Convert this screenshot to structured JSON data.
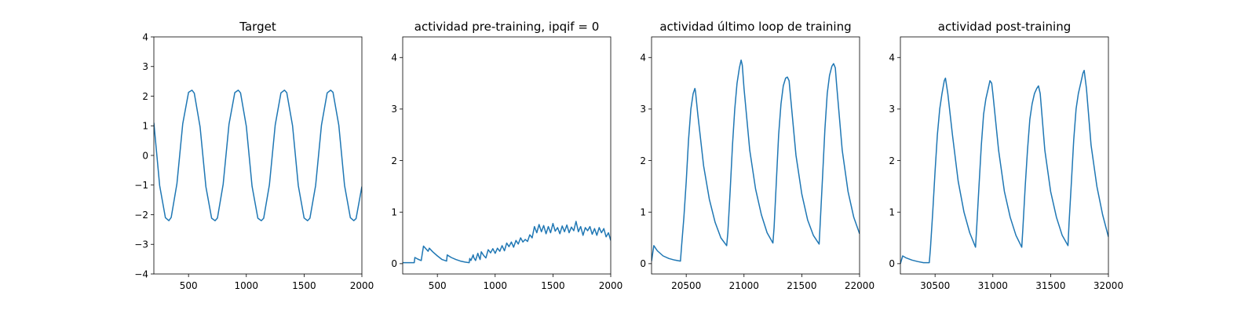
{
  "chart_data": [
    {
      "type": "line",
      "title": "Target",
      "xlabel": "",
      "ylabel": "",
      "xlim": [
        200,
        2000
      ],
      "ylim": [
        -4,
        4
      ],
      "xticks": [
        500,
        1000,
        1500,
        2000
      ],
      "xtick_labels": [
        "500",
        "1000",
        "1500",
        "2000"
      ],
      "yticks": [
        -4,
        -3,
        -2,
        -1,
        0,
        1,
        2,
        3,
        4
      ],
      "ytick_labels": [
        "−4",
        "−3",
        "−2",
        "−1",
        "0",
        "1",
        "2",
        "3",
        "4"
      ],
      "grid": false,
      "color": "#1f77b4",
      "x": [
        200,
        250,
        300,
        330,
        350,
        400,
        450,
        500,
        530,
        550,
        600,
        650,
        700,
        730,
        750,
        800,
        850,
        900,
        930,
        950,
        1000,
        1050,
        1100,
        1130,
        1150,
        1200,
        1250,
        1300,
        1330,
        1350,
        1400,
        1450,
        1500,
        1530,
        1550,
        1600,
        1650,
        1700,
        1730,
        1750,
        1800,
        1850,
        1900,
        1930,
        1950,
        2000
      ],
      "y": [
        1.1,
        -1.02,
        -2.1,
        -2.2,
        -2.09,
        -0.95,
        1.07,
        2.13,
        2.2,
        2.1,
        0.96,
        -1.06,
        -2.12,
        -2.2,
        -2.11,
        -0.97,
        1.05,
        2.12,
        2.2,
        2.11,
        0.98,
        -1.04,
        -2.12,
        -2.2,
        -2.12,
        -0.99,
        1.03,
        2.11,
        2.2,
        2.12,
        1.0,
        -1.02,
        -2.11,
        -2.2,
        -2.12,
        -1.01,
        1.02,
        2.11,
        2.2,
        2.13,
        1.02,
        -1.01,
        -2.1,
        -2.2,
        -2.13,
        -1.05
      ]
    },
    {
      "type": "line",
      "title": "actividad pre-training, ipqif = 0",
      "xlabel": "",
      "ylabel": "",
      "xlim": [
        200,
        2000
      ],
      "ylim": [
        -0.2,
        4.4
      ],
      "xticks": [
        500,
        1000,
        1500,
        2000
      ],
      "xtick_labels": [
        "500",
        "1000",
        "1500",
        "2000"
      ],
      "yticks": [
        0,
        1,
        2,
        3,
        4
      ],
      "ytick_labels": [
        "0",
        "1",
        "2",
        "3",
        "4"
      ],
      "grid": false,
      "color": "#1f77b4",
      "x": [
        200,
        260,
        300,
        305,
        330,
        360,
        370,
        380,
        400,
        420,
        430,
        460,
        500,
        540,
        580,
        585,
        620,
        660,
        700,
        740,
        775,
        780,
        790,
        810,
        815,
        830,
        850,
        860,
        870,
        880,
        900,
        920,
        940,
        960,
        980,
        1000,
        1020,
        1040,
        1060,
        1080,
        1100,
        1120,
        1140,
        1160,
        1180,
        1200,
        1220,
        1240,
        1260,
        1280,
        1300,
        1320,
        1340,
        1360,
        1380,
        1400,
        1420,
        1440,
        1460,
        1480,
        1500,
        1520,
        1540,
        1560,
        1580,
        1600,
        1620,
        1640,
        1660,
        1680,
        1700,
        1720,
        1740,
        1760,
        1780,
        1800,
        1820,
        1840,
        1860,
        1880,
        1900,
        1920,
        1940,
        1960,
        1980,
        2000
      ],
      "y": [
        0.02,
        0.02,
        0.02,
        0.12,
        0.09,
        0.06,
        0.2,
        0.34,
        0.29,
        0.24,
        0.3,
        0.23,
        0.15,
        0.08,
        0.05,
        0.17,
        0.12,
        0.08,
        0.05,
        0.03,
        0.02,
        0.1,
        0.06,
        0.17,
        0.12,
        0.06,
        0.2,
        0.13,
        0.08,
        0.23,
        0.16,
        0.11,
        0.27,
        0.21,
        0.29,
        0.2,
        0.3,
        0.24,
        0.35,
        0.25,
        0.4,
        0.33,
        0.42,
        0.32,
        0.45,
        0.38,
        0.5,
        0.42,
        0.47,
        0.43,
        0.56,
        0.5,
        0.72,
        0.6,
        0.76,
        0.62,
        0.74,
        0.58,
        0.72,
        0.6,
        0.78,
        0.63,
        0.7,
        0.58,
        0.73,
        0.62,
        0.75,
        0.6,
        0.71,
        0.64,
        0.82,
        0.62,
        0.72,
        0.55,
        0.7,
        0.64,
        0.72,
        0.57,
        0.68,
        0.55,
        0.7,
        0.6,
        0.68,
        0.52,
        0.6,
        0.45
      ]
    },
    {
      "type": "line",
      "title": "actividad último loop de training",
      "xlabel": "",
      "ylabel": "",
      "xlim": [
        20200,
        22000
      ],
      "ylim": [
        -0.2,
        4.4
      ],
      "xticks": [
        20500,
        21000,
        21500,
        22000
      ],
      "xtick_labels": [
        "20500",
        "21000",
        "21500",
        "22000"
      ],
      "yticks": [
        0,
        1,
        2,
        3,
        4
      ],
      "ytick_labels": [
        "0",
        "1",
        "2",
        "3",
        "4"
      ],
      "grid": false,
      "color": "#1f77b4",
      "x": [
        20200,
        20220,
        20250,
        20300,
        20350,
        20400,
        20450,
        20460,
        20480,
        20500,
        20520,
        20540,
        20560,
        20575,
        20580,
        20600,
        20650,
        20700,
        20750,
        20800,
        20850,
        20860,
        20880,
        20900,
        20920,
        20940,
        20960,
        20975,
        20985,
        21000,
        21050,
        21100,
        21150,
        21200,
        21250,
        21260,
        21280,
        21300,
        21320,
        21340,
        21360,
        21375,
        21390,
        21400,
        21450,
        21500,
        21550,
        21600,
        21650,
        21660,
        21680,
        21700,
        21720,
        21740,
        21760,
        21775,
        21790,
        21800,
        21850,
        21900,
        21950,
        22000
      ],
      "y": [
        0.05,
        0.35,
        0.25,
        0.15,
        0.1,
        0.07,
        0.05,
        0.35,
        0.9,
        1.6,
        2.4,
        3.0,
        3.3,
        3.4,
        3.35,
        2.9,
        1.9,
        1.25,
        0.8,
        0.5,
        0.35,
        0.6,
        1.4,
        2.3,
        3.0,
        3.5,
        3.8,
        3.95,
        3.85,
        3.4,
        2.2,
        1.45,
        0.95,
        0.6,
        0.4,
        0.7,
        1.6,
        2.5,
        3.1,
        3.45,
        3.6,
        3.62,
        3.55,
        3.3,
        2.1,
        1.35,
        0.85,
        0.55,
        0.38,
        0.8,
        1.7,
        2.6,
        3.3,
        3.65,
        3.83,
        3.88,
        3.8,
        3.5,
        2.2,
        1.4,
        0.9,
        0.58
      ]
    },
    {
      "type": "line",
      "title": "actividad post-training",
      "xlabel": "",
      "ylabel": "",
      "xlim": [
        30200,
        32000
      ],
      "ylim": [
        -0.2,
        4.4
      ],
      "xticks": [
        30500,
        31000,
        31500,
        32000
      ],
      "xtick_labels": [
        "30500",
        "31000",
        "31500",
        "32000"
      ],
      "yticks": [
        0,
        1,
        2,
        3,
        4
      ],
      "ytick_labels": [
        "0",
        "1",
        "2",
        "3",
        "4"
      ],
      "grid": false,
      "color": "#1f77b4",
      "x": [
        30200,
        30220,
        30250,
        30300,
        30350,
        30400,
        30450,
        30460,
        30480,
        30500,
        30520,
        30540,
        30560,
        30580,
        30590,
        30610,
        30650,
        30700,
        30750,
        30800,
        30850,
        30860,
        30880,
        30900,
        30920,
        30940,
        30960,
        30975,
        30990,
        31000,
        31050,
        31100,
        31150,
        31200,
        31250,
        31260,
        31280,
        31300,
        31320,
        31340,
        31360,
        31380,
        31395,
        31410,
        31450,
        31500,
        31550,
        31600,
        31650,
        31660,
        31680,
        31700,
        31720,
        31740,
        31760,
        31780,
        31790,
        31810,
        31850,
        31900,
        31950,
        32000
      ],
      "y": [
        0.0,
        0.15,
        0.11,
        0.07,
        0.04,
        0.02,
        0.02,
        0.3,
        1.0,
        1.8,
        2.5,
        3.0,
        3.3,
        3.55,
        3.6,
        3.3,
        2.5,
        1.6,
        1.0,
        0.6,
        0.32,
        0.7,
        1.5,
        2.3,
        2.9,
        3.2,
        3.4,
        3.55,
        3.5,
        3.3,
        2.2,
        1.4,
        0.9,
        0.55,
        0.32,
        0.7,
        1.5,
        2.2,
        2.8,
        3.1,
        3.3,
        3.4,
        3.45,
        3.3,
        2.2,
        1.4,
        0.9,
        0.55,
        0.35,
        0.8,
        1.6,
        2.4,
        3.0,
        3.3,
        3.5,
        3.7,
        3.75,
        3.4,
        2.3,
        1.5,
        0.95,
        0.52
      ]
    }
  ]
}
